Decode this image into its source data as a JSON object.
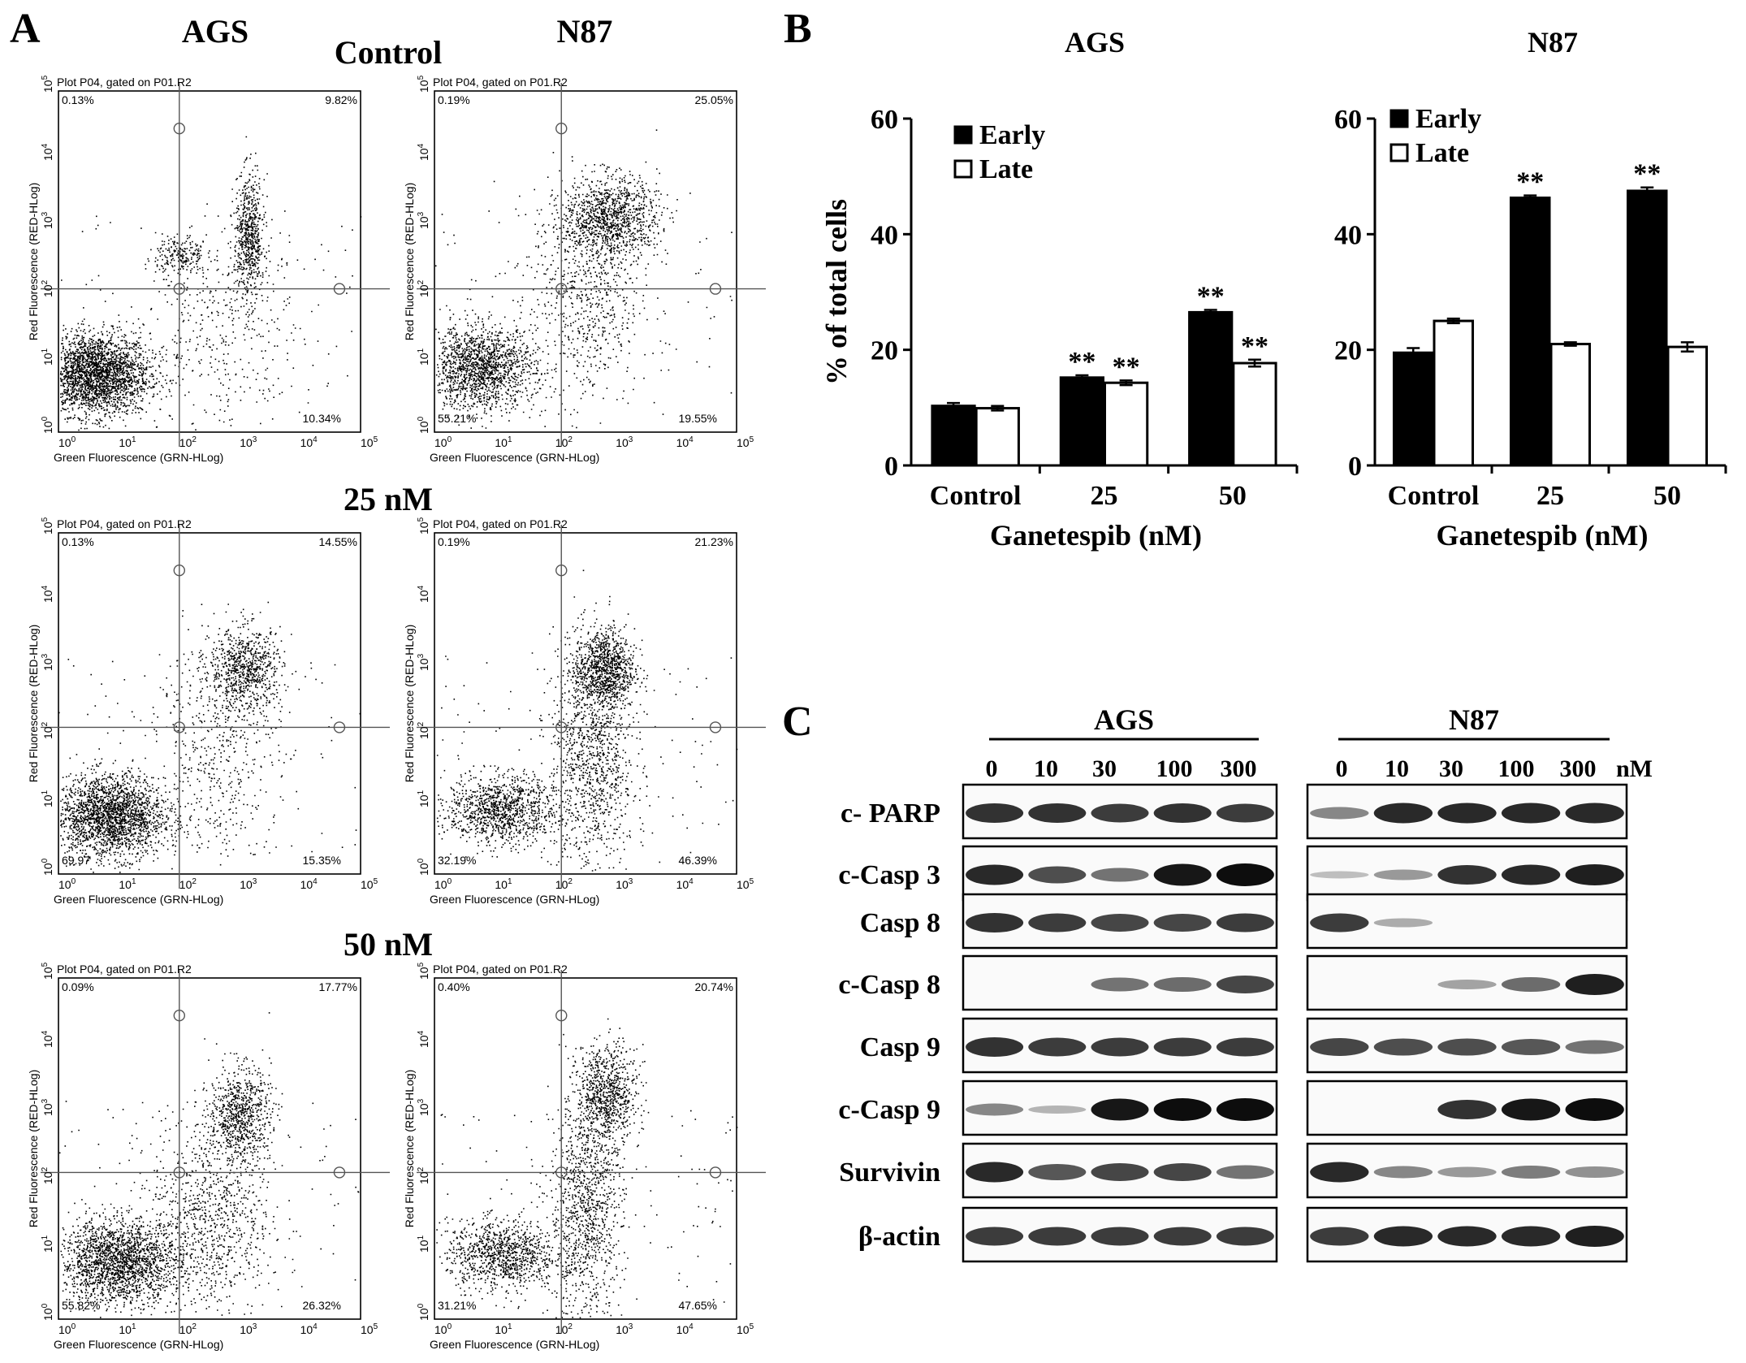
{
  "panel_A": {
    "label": "A",
    "columns": [
      "AGS",
      "N87"
    ],
    "rows": [
      "Control",
      "25 nM",
      "50 nM"
    ],
    "plot_title": "Plot P04, gated on P01.R2",
    "x_axis_label": "Green Fluorescence (GRN-HLog)",
    "y_axis_label": "Red Fluorescence (RED-HLog)",
    "tick_base": "10",
    "tick_exponents": [
      "0",
      "1",
      "2",
      "3",
      "4",
      "5"
    ],
    "plots": [
      {
        "cell": "AGS",
        "condition": "Control",
        "ul": "0.13%",
        "ur": "9.82%",
        "ll": "",
        "lr": "10.34%"
      },
      {
        "cell": "N87",
        "condition": "Control",
        "ul": "0.19%",
        "ur": "25.05%",
        "ll": "55.21%",
        "lr": "19.55%"
      },
      {
        "cell": "AGS",
        "condition": "25 nM",
        "ul": "0.13%",
        "ur": "14.55%",
        "ll": "69.97",
        "lr": "15.35%"
      },
      {
        "cell": "N87",
        "condition": "25 nM",
        "ul": "0.19%",
        "ur": "21.23%",
        "ll": "32.19%",
        "lr": "46.39%"
      },
      {
        "cell": "AGS",
        "condition": "50 nM",
        "ul": "0.09%",
        "ur": "17.77%",
        "ll": "55.82%",
        "lr": "26.32%"
      },
      {
        "cell": "N87",
        "condition": "50 nM",
        "ul": "0.40%",
        "ur": "20.74%",
        "ll": "31.21%",
        "lr": "47.65%"
      }
    ]
  },
  "panel_B": {
    "label": "B",
    "significance_mark": "**"
  },
  "chart_data": [
    {
      "type": "bar",
      "title": "AGS",
      "categories": [
        "Control",
        "25",
        "50"
      ],
      "xlabel": "Ganetespib (nM)",
      "ylabel": "% of total cells",
      "ylim": [
        0,
        60
      ],
      "yticks": [
        "0",
        "20",
        "40",
        "60"
      ],
      "legend_position": "top-left",
      "series": [
        {
          "name": "Early",
          "color": "#000000",
          "values": [
            10.3,
            15.2,
            26.5
          ],
          "errors": [
            0.5,
            0.4,
            0.4
          ],
          "significant": [
            false,
            true,
            true
          ]
        },
        {
          "name": "Late",
          "color": "#ffffff",
          "values": [
            9.9,
            14.3,
            17.7
          ],
          "errors": [
            0.4,
            0.4,
            0.6
          ],
          "significant": [
            false,
            true,
            true
          ]
        }
      ]
    },
    {
      "type": "bar",
      "title": "N87",
      "categories": [
        "Control",
        "25",
        "50"
      ],
      "xlabel": "Ganetespib (nM)",
      "ylabel": "",
      "ylim": [
        0,
        60
      ],
      "yticks": [
        "0",
        "20",
        "40",
        "60"
      ],
      "legend_position": "top-left",
      "series": [
        {
          "name": "Early",
          "color": "#000000",
          "values": [
            19.5,
            46.3,
            47.5
          ],
          "errors": [
            0.8,
            0.4,
            0.6
          ],
          "significant": [
            false,
            true,
            true
          ]
        },
        {
          "name": "Late",
          "color": "#ffffff",
          "values": [
            25.0,
            21.0,
            20.5
          ],
          "errors": [
            0.4,
            0.3,
            0.8
          ],
          "significant": [
            false,
            false,
            false
          ]
        }
      ]
    }
  ],
  "panel_C": {
    "label": "C",
    "groups": [
      "AGS",
      "N87"
    ],
    "concentrations": [
      "0",
      "10",
      "30",
      "100",
      "300"
    ],
    "unit": "nM",
    "proteins": [
      "c- PARP",
      "c-Casp 3",
      "Casp 8",
      "c-Casp 8",
      "Casp 9",
      "c-Casp 9",
      "Survivin",
      "β-actin"
    ],
    "bands": {
      "AGS": [
        [
          0.8,
          0.8,
          0.75,
          0.8,
          0.75
        ],
        [
          0.85,
          0.65,
          0.45,
          0.95,
          1.0
        ],
        [
          0.8,
          0.75,
          0.7,
          0.7,
          0.75
        ],
        [
          0.0,
          0.0,
          0.45,
          0.5,
          0.7
        ],
        [
          0.8,
          0.75,
          0.75,
          0.75,
          0.75
        ],
        [
          0.35,
          0.1,
          0.95,
          1.0,
          1.0
        ],
        [
          0.85,
          0.6,
          0.7,
          0.7,
          0.45
        ],
        [
          0.75,
          0.75,
          0.75,
          0.75,
          0.75
        ]
      ],
      "N87": [
        [
          0.35,
          0.85,
          0.85,
          0.85,
          0.85
        ],
        [
          0.05,
          0.25,
          0.8,
          0.85,
          0.9
        ],
        [
          0.75,
          0.15,
          0.0,
          0.0,
          0.0
        ],
        [
          0.0,
          0.0,
          0.2,
          0.5,
          0.9
        ],
        [
          0.7,
          0.65,
          0.65,
          0.6,
          0.45
        ],
        [
          0.0,
          0.0,
          0.8,
          0.95,
          1.0
        ],
        [
          0.85,
          0.35,
          0.25,
          0.4,
          0.3
        ],
        [
          0.75,
          0.85,
          0.85,
          0.85,
          0.9
        ]
      ]
    }
  }
}
